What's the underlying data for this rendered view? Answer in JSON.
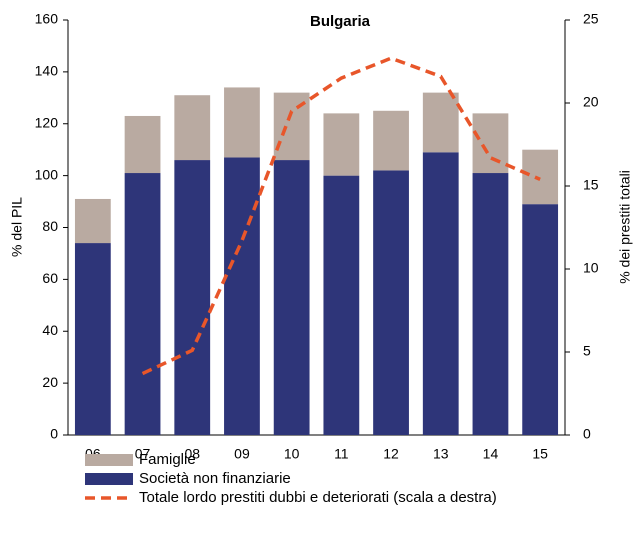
{
  "chart_data": {
    "type": "bar",
    "title": "Bulgaria",
    "y_label": "% del PIL",
    "y2_label": "% dei prestiti totali",
    "categories": [
      "06",
      "07",
      "08",
      "09",
      "10",
      "11",
      "12",
      "13",
      "14",
      "15"
    ],
    "series": [
      {
        "name": "Famiglie",
        "type": "bar",
        "color": "#b9aaa1",
        "values": [
          17,
          22,
          25,
          27,
          26,
          24,
          23,
          23,
          23,
          21
        ]
      },
      {
        "name": "Società non finanziarie",
        "type": "bar",
        "color": "#2e3579",
        "values": [
          74,
          101,
          106,
          107,
          106,
          100,
          102,
          109,
          101,
          89
        ]
      },
      {
        "name": "Totale lordo prestiti dubbi e deteriorati (scala a destra)",
        "type": "line",
        "axis": "y2",
        "color": "#e8562a",
        "values": [
          null,
          3.7,
          5.1,
          11.7,
          19.5,
          21.5,
          22.7,
          21.6,
          16.7,
          15.4
        ]
      }
    ],
    "ylim": [
      0,
      160
    ],
    "yticks": [
      0,
      20,
      40,
      60,
      80,
      100,
      120,
      140,
      160
    ],
    "y2lim": [
      0,
      25
    ],
    "y2ticks": [
      0,
      5,
      10,
      15,
      20,
      25
    ]
  }
}
